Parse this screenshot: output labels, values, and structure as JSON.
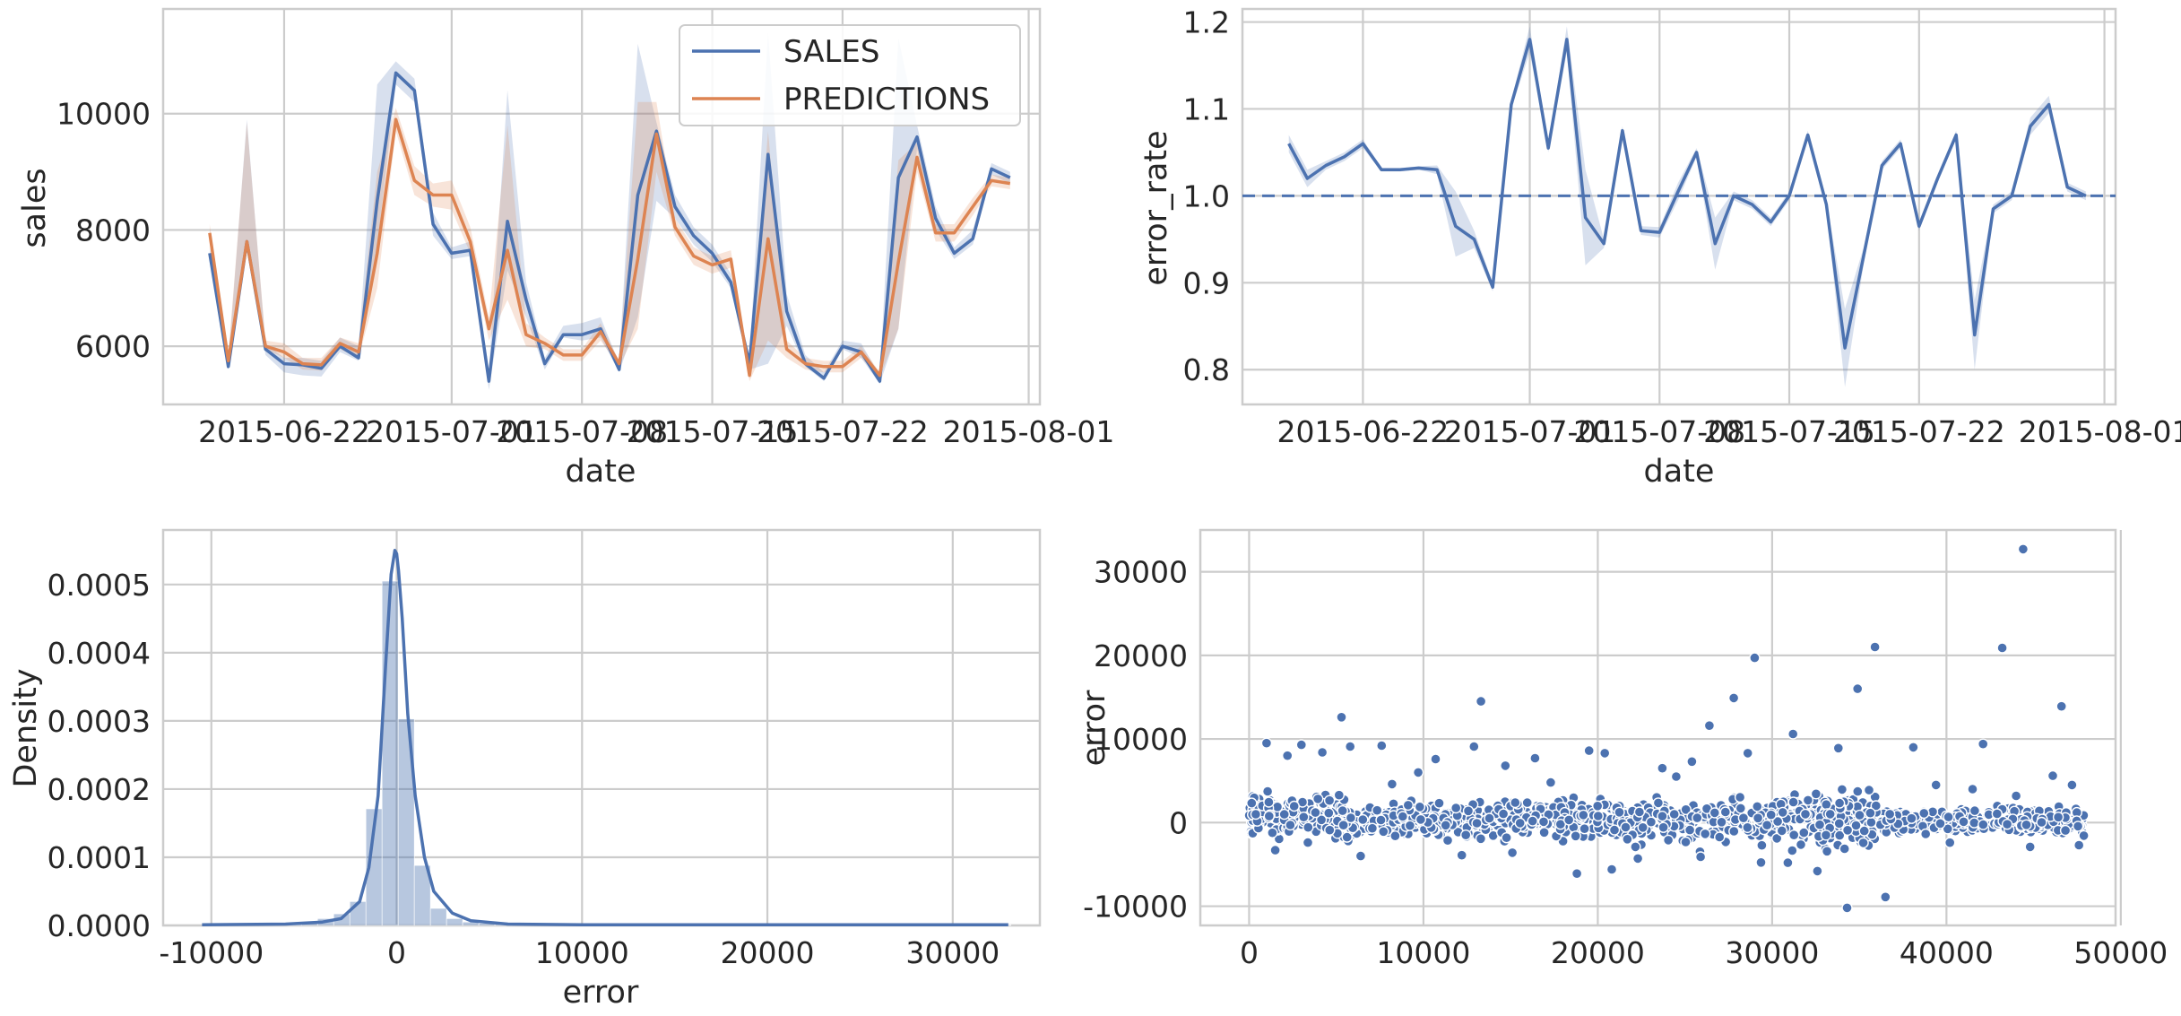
{
  "colors": {
    "sales": "#4c72b0",
    "predictions": "#dd8452",
    "grid": "#cccccc",
    "text": "#262626"
  },
  "chart_data": [
    {
      "type": "line",
      "xlabel": "date",
      "ylabel": "sales",
      "xticks": [
        "2015-06-22",
        "2015-07-01",
        "2015-07-08",
        "2015-07-15",
        "2015-07-22",
        "2015-08-01"
      ],
      "yticks": [
        "6000",
        "8000",
        "10000"
      ],
      "xlim": [
        "2015-06-16",
        "2015-08-01"
      ],
      "ylim": [
        5000,
        11800
      ],
      "legend_position": "top-right",
      "grid": true,
      "x": [
        "2015-06-18",
        "2015-06-19",
        "2015-06-20",
        "2015-06-21",
        "2015-06-22",
        "2015-06-23",
        "2015-06-24",
        "2015-06-25",
        "2015-06-26",
        "2015-06-27",
        "2015-06-28",
        "2015-06-29",
        "2015-06-30",
        "2015-07-01",
        "2015-07-02",
        "2015-07-03",
        "2015-07-04",
        "2015-07-05",
        "2015-07-06",
        "2015-07-07",
        "2015-07-08",
        "2015-07-09",
        "2015-07-10",
        "2015-07-11",
        "2015-07-12",
        "2015-07-13",
        "2015-07-14",
        "2015-07-15",
        "2015-07-16",
        "2015-07-17",
        "2015-07-18",
        "2015-07-19",
        "2015-07-20",
        "2015-07-21",
        "2015-07-22",
        "2015-07-23",
        "2015-07-24",
        "2015-07-25",
        "2015-07-26",
        "2015-07-27",
        "2015-07-28",
        "2015-07-29",
        "2015-07-30",
        "2015-07-31"
      ],
      "series": [
        {
          "name": "SALES",
          "values": [
            7600,
            5650,
            7800,
            5950,
            5700,
            5680,
            5620,
            6000,
            5800,
            8500,
            10700,
            10400,
            8100,
            7600,
            7650,
            5400,
            8150,
            6800,
            5700,
            6200,
            6200,
            6300,
            5600,
            8600,
            9700,
            8400,
            7900,
            7600,
            7100,
            5700,
            9300,
            6600,
            5700,
            5450,
            6000,
            5900,
            5400,
            8900,
            9600,
            8200,
            7600,
            7850,
            9050,
            8900
          ],
          "band_low": [
            7500,
            5600,
            7700,
            5850,
            5550,
            5500,
            5480,
            5900,
            5750,
            7700,
            10500,
            10200,
            7900,
            7500,
            7550,
            5250,
            7300,
            6500,
            5600,
            6150,
            6100,
            6150,
            5550,
            6500,
            8500,
            8200,
            7750,
            7450,
            7000,
            5600,
            5700,
            6350,
            5650,
            5400,
            5950,
            5800,
            5350,
            6300,
            9400,
            8000,
            7500,
            7750,
            8950,
            8800
          ],
          "band_high": [
            7700,
            5750,
            9900,
            6050,
            5800,
            5800,
            5750,
            6150,
            6000,
            10500,
            10900,
            10600,
            8300,
            7700,
            7800,
            5600,
            10400,
            7100,
            5800,
            6350,
            6400,
            6500,
            5700,
            11200,
            9850,
            8600,
            8050,
            7750,
            7250,
            5800,
            11400,
            6900,
            5850,
            5550,
            6100,
            6050,
            5500,
            11300,
            9800,
            8400,
            7700,
            8000,
            9150,
            9000
          ]
        },
        {
          "name": "PREDICTIONS",
          "values": [
            7950,
            5750,
            7800,
            6000,
            5900,
            5700,
            5680,
            6050,
            5900,
            7600,
            9900,
            8850,
            8600,
            8600,
            7800,
            6300,
            7650,
            6200,
            6050,
            5850,
            5850,
            6250,
            5700,
            7500,
            9650,
            8050,
            7550,
            7400,
            7500,
            5500,
            7850,
            5950,
            5700,
            5650,
            5650,
            5900,
            5500,
            7450,
            9250,
            7950,
            7950,
            8400,
            8850,
            8800
          ],
          "band_low": [
            7800,
            5650,
            7700,
            5950,
            5800,
            5600,
            5580,
            5950,
            5800,
            7000,
            9700,
            8600,
            8400,
            8350,
            7600,
            6100,
            6800,
            6000,
            5950,
            5750,
            5750,
            6100,
            5650,
            6300,
            9000,
            7900,
            7400,
            7250,
            7350,
            5400,
            6100,
            5800,
            5600,
            5550,
            5550,
            5800,
            5450,
            6300,
            9000,
            7800,
            7800,
            8250,
            8750,
            8700
          ],
          "band_high": [
            8100,
            5850,
            9850,
            6100,
            6050,
            5800,
            5800,
            6150,
            6050,
            9000,
            10100,
            9100,
            8800,
            8850,
            8050,
            6500,
            9800,
            6400,
            6150,
            5950,
            5950,
            6400,
            5750,
            10200,
            10200,
            8200,
            7700,
            7550,
            7650,
            5600,
            9700,
            6100,
            5800,
            5750,
            5750,
            6000,
            5550,
            9200,
            9500,
            8100,
            8100,
            8550,
            8950,
            8900
          ]
        }
      ]
    },
    {
      "type": "line",
      "xlabel": "date",
      "ylabel": "error_rate",
      "xticks": [
        "2015-06-22",
        "2015-07-01",
        "2015-07-08",
        "2015-07-15",
        "2015-07-22",
        "2015-08-01"
      ],
      "yticks": [
        "0.8",
        "0.9",
        "1.0",
        "1.1",
        "1.2"
      ],
      "xlim": [
        "2015-06-16",
        "2015-08-01"
      ],
      "ylim": [
        0.76,
        1.215
      ],
      "reference_line": 1.0,
      "grid": true,
      "x": [
        "2015-06-18",
        "2015-06-19",
        "2015-06-20",
        "2015-06-21",
        "2015-06-22",
        "2015-06-23",
        "2015-06-24",
        "2015-06-25",
        "2015-06-26",
        "2015-06-27",
        "2015-06-28",
        "2015-06-29",
        "2015-06-30",
        "2015-07-01",
        "2015-07-02",
        "2015-07-03",
        "2015-07-04",
        "2015-07-05",
        "2015-07-06",
        "2015-07-07",
        "2015-07-08",
        "2015-07-09",
        "2015-07-10",
        "2015-07-11",
        "2015-07-12",
        "2015-07-13",
        "2015-07-14",
        "2015-07-15",
        "2015-07-16",
        "2015-07-17",
        "2015-07-18",
        "2015-07-19",
        "2015-07-20",
        "2015-07-21",
        "2015-07-22",
        "2015-07-23",
        "2015-07-24",
        "2015-07-25",
        "2015-07-26",
        "2015-07-27",
        "2015-07-28",
        "2015-07-29",
        "2015-07-30",
        "2015-07-31"
      ],
      "series": [
        {
          "name": "",
          "values": [
            1.06,
            1.02,
            1.035,
            1.045,
            1.06,
            1.03,
            1.03,
            1.032,
            1.03,
            0.965,
            0.95,
            0.895,
            1.105,
            1.18,
            1.055,
            1.18,
            0.975,
            0.945,
            1.075,
            0.96,
            0.958,
            1.005,
            1.05,
            0.945,
            1.0,
            0.99,
            0.97,
            1.0,
            1.07,
            0.99,
            0.825,
            0.93,
            1.035,
            1.06,
            0.965,
            1.02,
            1.07,
            0.84,
            0.985,
            1.0,
            1.08,
            1.105,
            1.01,
            1.0
          ],
          "band_low": [
            1.05,
            1.01,
            1.03,
            1.04,
            1.055,
            1.028,
            1.028,
            1.03,
            1.025,
            0.93,
            0.94,
            0.89,
            1.1,
            1.165,
            1.05,
            1.165,
            0.92,
            0.94,
            1.07,
            0.955,
            0.952,
            0.995,
            1.045,
            0.915,
            0.995,
            0.985,
            0.965,
            0.995,
            1.065,
            0.985,
            0.78,
            0.92,
            1.03,
            1.055,
            0.96,
            1.015,
            1.065,
            0.8,
            0.98,
            0.995,
            1.07,
            1.095,
            1.005,
            0.995
          ],
          "band_high": [
            1.07,
            1.03,
            1.04,
            1.05,
            1.065,
            1.032,
            1.032,
            1.034,
            1.035,
            1.005,
            0.96,
            0.9,
            1.11,
            1.195,
            1.06,
            1.195,
            1.03,
            0.95,
            1.08,
            0.965,
            0.964,
            1.015,
            1.055,
            0.975,
            1.005,
            0.995,
            0.975,
            1.005,
            1.075,
            0.995,
            0.87,
            0.94,
            1.04,
            1.065,
            0.97,
            1.025,
            1.075,
            0.88,
            0.99,
            1.005,
            1.09,
            1.115,
            1.015,
            1.005
          ]
        }
      ]
    },
    {
      "type": "area",
      "subtype": "histogram+kde",
      "xlabel": "error",
      "ylabel": "Density",
      "xticks": [
        "-10000",
        "0",
        "10000",
        "20000",
        "30000"
      ],
      "yticks": [
        "0.0000",
        "0.0001",
        "0.0002",
        "0.0003",
        "0.0004",
        "0.0005"
      ],
      "xlim": [
        -12600,
        34700
      ],
      "ylim": [
        0,
        0.00058
      ],
      "grid": true,
      "bins": {
        "edges": [
          -10360,
          -9490,
          -8620,
          -7750,
          -6880,
          -6010,
          -5140,
          -4270,
          -3400,
          -2530,
          -1660,
          -790,
          80,
          950,
          1820,
          2690,
          3560,
          4430,
          5300,
          6170,
          7040,
          7910,
          8780,
          9650,
          10520,
          11390,
          12260,
          13130,
          14000,
          14870,
          15740,
          16610,
          17480,
          18350,
          19220,
          20090,
          20960,
          21830,
          22700,
          23570,
          24440,
          25310,
          26180,
          27050,
          27920,
          28790,
          29660,
          30530,
          31400,
          32270,
          33140
        ],
        "density": [
          1e-06,
          1e-06,
          1e-06,
          1e-06,
          2e-06,
          3e-06,
          5e-06,
          1e-05,
          1.7e-05,
          3.5e-05,
          0.000171,
          0.000505,
          0.000303,
          8.8e-05,
          2.5e-05,
          1e-05,
          5e-06,
          3e-06,
          2e-06,
          1e-06,
          1e-06,
          1e-06,
          1e-06,
          1e-06,
          1e-06,
          1e-06,
          1e-06,
          1e-06,
          1e-06,
          1e-06,
          1e-06,
          1e-06,
          1e-06,
          1e-06,
          1e-06,
          1e-06,
          1e-06,
          1e-06,
          1e-06,
          1e-06,
          1e-06,
          1e-06,
          1e-06,
          1e-06,
          1e-06,
          1e-06,
          1e-06,
          1e-06,
          1e-06,
          1e-06
        ]
      },
      "kde": {
        "x": [
          -10500,
          -6000,
          -4000,
          -3000,
          -2000,
          -1500,
          -1000,
          -600,
          -300,
          -100,
          0,
          100,
          300,
          600,
          1000,
          1500,
          2000,
          3000,
          4000,
          6000,
          10000,
          20000,
          33000
        ],
        "y": [
          1e-06,
          2e-06,
          5e-06,
          1e-05,
          3.5e-05,
          8.5e-05,
          0.00019,
          0.00038,
          0.000515,
          0.00055,
          0.000545,
          0.00052,
          0.00045,
          0.00031,
          0.00019,
          0.0001,
          5e-05,
          1.8e-05,
          7e-06,
          2e-06,
          1e-06,
          1e-06,
          1e-06
        ]
      }
    },
    {
      "type": "scatter",
      "xlabel": "",
      "ylabel": "error",
      "xticks": [
        "0",
        "10000",
        "20000",
        "30000",
        "40000",
        "50000"
      ],
      "yticks": [
        "-10000",
        "0",
        "10000",
        "20000",
        "30000"
      ],
      "xlim": [
        -2800,
        49700
      ],
      "ylim": [
        -12300,
        35000
      ],
      "grid": true,
      "n_points": 47945,
      "outliers": [
        [
          44400,
          32700
        ],
        [
          35900,
          21000
        ],
        [
          43200,
          20900
        ],
        [
          29000,
          19700
        ],
        [
          34900,
          16000
        ],
        [
          27800,
          14900
        ],
        [
          46600,
          13900
        ],
        [
          13300,
          14500
        ],
        [
          5300,
          12600
        ],
        [
          26400,
          11600
        ],
        [
          31200,
          10600
        ],
        [
          1000,
          9500
        ],
        [
          3000,
          9300
        ],
        [
          5800,
          9100
        ],
        [
          7600,
          9200
        ],
        [
          12900,
          9100
        ],
        [
          19500,
          8600
        ],
        [
          20400,
          8300
        ],
        [
          25400,
          7300
        ],
        [
          33800,
          8900
        ],
        [
          38100,
          9000
        ],
        [
          42100,
          9400
        ],
        [
          46100,
          5600
        ],
        [
          18800,
          -6100
        ],
        [
          20800,
          -5600
        ],
        [
          22300,
          -4300
        ],
        [
          25900,
          -4100
        ],
        [
          30900,
          -4800
        ],
        [
          34300,
          -10200
        ],
        [
          36500,
          -8900
        ],
        [
          32600,
          -5800
        ],
        [
          14700,
          6800
        ],
        [
          9700,
          6000
        ],
        [
          23700,
          6500
        ],
        [
          2200,
          8000
        ],
        [
          4200,
          8400
        ],
        [
          10700,
          7600
        ],
        [
          16400,
          7700
        ],
        [
          28600,
          8300
        ],
        [
          39400,
          4500
        ],
        [
          41500,
          4000
        ],
        [
          44000,
          3200
        ],
        [
          47200,
          4500
        ],
        [
          12200,
          -3900
        ],
        [
          6400,
          -4000
        ],
        [
          1500,
          -3300
        ],
        [
          15100,
          -3600
        ],
        [
          40200,
          -2400
        ],
        [
          44800,
          -2900
        ],
        [
          47600,
          -2700
        ],
        [
          24500,
          5500
        ],
        [
          17300,
          4800
        ],
        [
          8200,
          4600
        ]
      ]
    }
  ],
  "legend": {
    "items": [
      "SALES",
      "PREDICTIONS"
    ]
  }
}
